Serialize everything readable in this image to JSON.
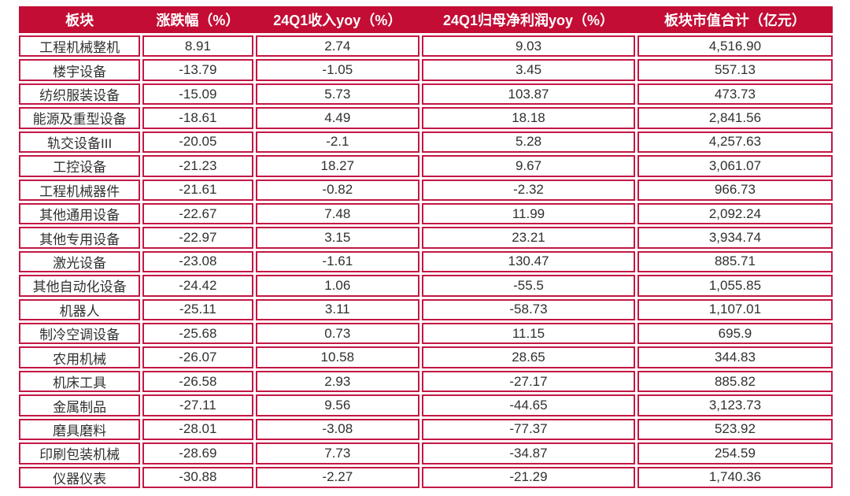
{
  "colors": {
    "header_bg": "#C30D35",
    "border": "#C31744",
    "body_text": "#303030",
    "header_text": "#FFFFFF",
    "page_bg": "#FFFFFF"
  },
  "chart_data": {
    "type": "table",
    "title": "",
    "columns": [
      "板块",
      "涨跌幅（%）",
      "24Q1收入yoy（%）",
      "24Q1归母净利润yoy（%）",
      "板块市值合计（亿元）"
    ],
    "rows": [
      [
        "工程机械整机",
        "8.91",
        "2.74",
        "9.03",
        "4,516.90"
      ],
      [
        "楼宇设备",
        "-13.79",
        "-1.05",
        "3.45",
        "557.13"
      ],
      [
        "纺织服装设备",
        "-15.09",
        "5.73",
        "103.87",
        "473.73"
      ],
      [
        "能源及重型设备",
        "-18.61",
        "4.49",
        "18.18",
        "2,841.56"
      ],
      [
        "轨交设备III",
        "-20.05",
        "-2.1",
        "5.28",
        "4,257.63"
      ],
      [
        "工控设备",
        "-21.23",
        "18.27",
        "9.67",
        "3,061.07"
      ],
      [
        "工程机械器件",
        "-21.61",
        "-0.82",
        "-2.32",
        "966.73"
      ],
      [
        "其他通用设备",
        "-22.67",
        "7.48",
        "11.99",
        "2,092.24"
      ],
      [
        "其他专用设备",
        "-22.97",
        "3.15",
        "23.21",
        "3,934.74"
      ],
      [
        "激光设备",
        "-23.08",
        "-1.61",
        "130.47",
        "885.71"
      ],
      [
        "其他自动化设备",
        "-24.42",
        "1.06",
        "-55.5",
        "1,055.85"
      ],
      [
        "机器人",
        "-25.11",
        "3.11",
        "-58.73",
        "1,107.01"
      ],
      [
        "制冷空调设备",
        "-25.68",
        "0.73",
        "11.15",
        "695.9"
      ],
      [
        "农用机械",
        "-26.07",
        "10.58",
        "28.65",
        "344.83"
      ],
      [
        "机床工具",
        "-26.58",
        "2.93",
        "-27.17",
        "885.82"
      ],
      [
        "金属制品",
        "-27.11",
        "9.56",
        "-44.65",
        "3,123.73"
      ],
      [
        "磨具磨料",
        "-28.01",
        "-3.08",
        "-77.37",
        "523.92"
      ],
      [
        "印刷包装机械",
        "-28.69",
        "7.73",
        "-34.87",
        "254.59"
      ],
      [
        "仪器仪表",
        "-30.88",
        "-2.27",
        "-21.29",
        "1,740.36"
      ]
    ]
  }
}
